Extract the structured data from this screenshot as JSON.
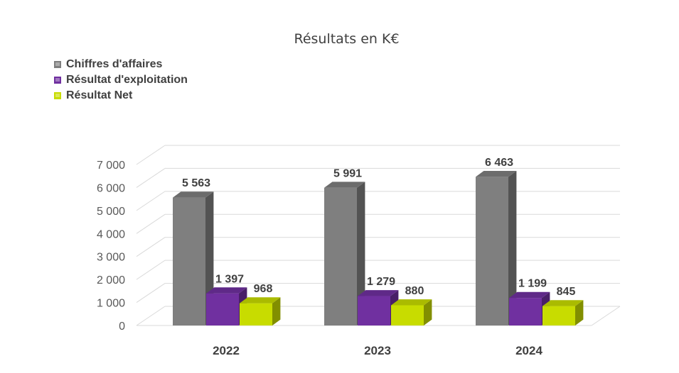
{
  "chart_data": {
    "type": "bar",
    "title": "Résultats en K€",
    "categories": [
      "2022",
      "2023",
      "2024"
    ],
    "series": [
      {
        "name": "Chiffres d'affaires",
        "values": [
          5563,
          5991,
          6463
        ],
        "labels": [
          "5 563",
          "5 991",
          "6 463"
        ],
        "color": "#7f7f7f"
      },
      {
        "name": "Résultat d'exploitation",
        "values": [
          1397,
          1279,
          1199
        ],
        "labels": [
          "1 397",
          "1 279",
          "1 199"
        ],
        "color": "#7030a0"
      },
      {
        "name": "Résultat Net",
        "values": [
          968,
          880,
          845
        ],
        "labels": [
          "968",
          "880",
          "845"
        ],
        "color": "#c8dc00"
      }
    ],
    "y_ticks": [
      "0",
      "1 000",
      "2 000",
      "3 000",
      "4 000",
      "5 000",
      "6 000",
      "7 000"
    ],
    "ylim": [
      0,
      7000
    ],
    "grid": true,
    "legend_position": "top-left",
    "style": "3d-column"
  }
}
